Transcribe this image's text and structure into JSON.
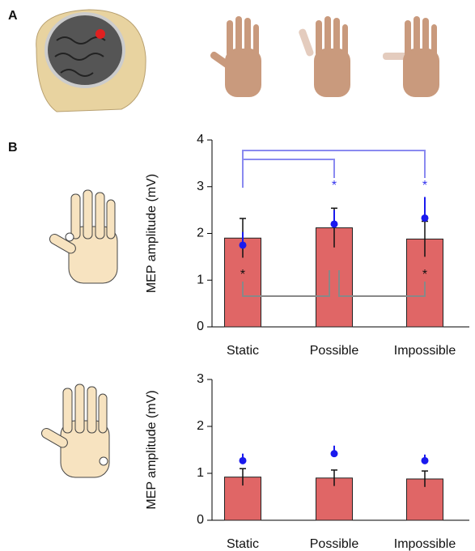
{
  "panel_a": "A",
  "panel_b": "B",
  "chart_data": [
    {
      "type": "bar",
      "y_label": "MEP amplitude (mV)",
      "categories": [
        "Static",
        "Possible",
        "Impossible"
      ],
      "series": [
        {
          "color": "#e06666",
          "values": [
            1.9,
            2.12,
            1.88
          ],
          "errors": [
            0.42,
            0.42,
            0.38
          ]
        },
        {
          "type": "dot",
          "color": "#1a1aee",
          "values": [
            1.75,
            2.2,
            2.33
          ],
          "errors": [
            0.28,
            0.3,
            0.45
          ]
        }
      ],
      "blue_asterisks": [
        null,
        "*",
        "*"
      ],
      "black_asterisks": [
        "*",
        null,
        "*"
      ],
      "ylim": [
        0,
        4
      ],
      "yticks": [
        0,
        1,
        2,
        3,
        4
      ]
    },
    {
      "type": "bar",
      "y_label": "MEP amplitude (mV)",
      "categories": [
        "Static",
        "Possible",
        "Impossible"
      ],
      "series": [
        {
          "color": "#e06666",
          "values": [
            0.92,
            0.9,
            0.88
          ],
          "errors": [
            0.18,
            0.17,
            0.17
          ]
        },
        {
          "type": "dot",
          "color": "#1a1aee",
          "values": [
            1.27,
            1.42,
            1.27
          ],
          "errors": [
            0.15,
            0.17,
            0.13
          ]
        }
      ],
      "ylim": [
        0,
        3
      ],
      "yticks": [
        0,
        1,
        2,
        3
      ]
    }
  ]
}
